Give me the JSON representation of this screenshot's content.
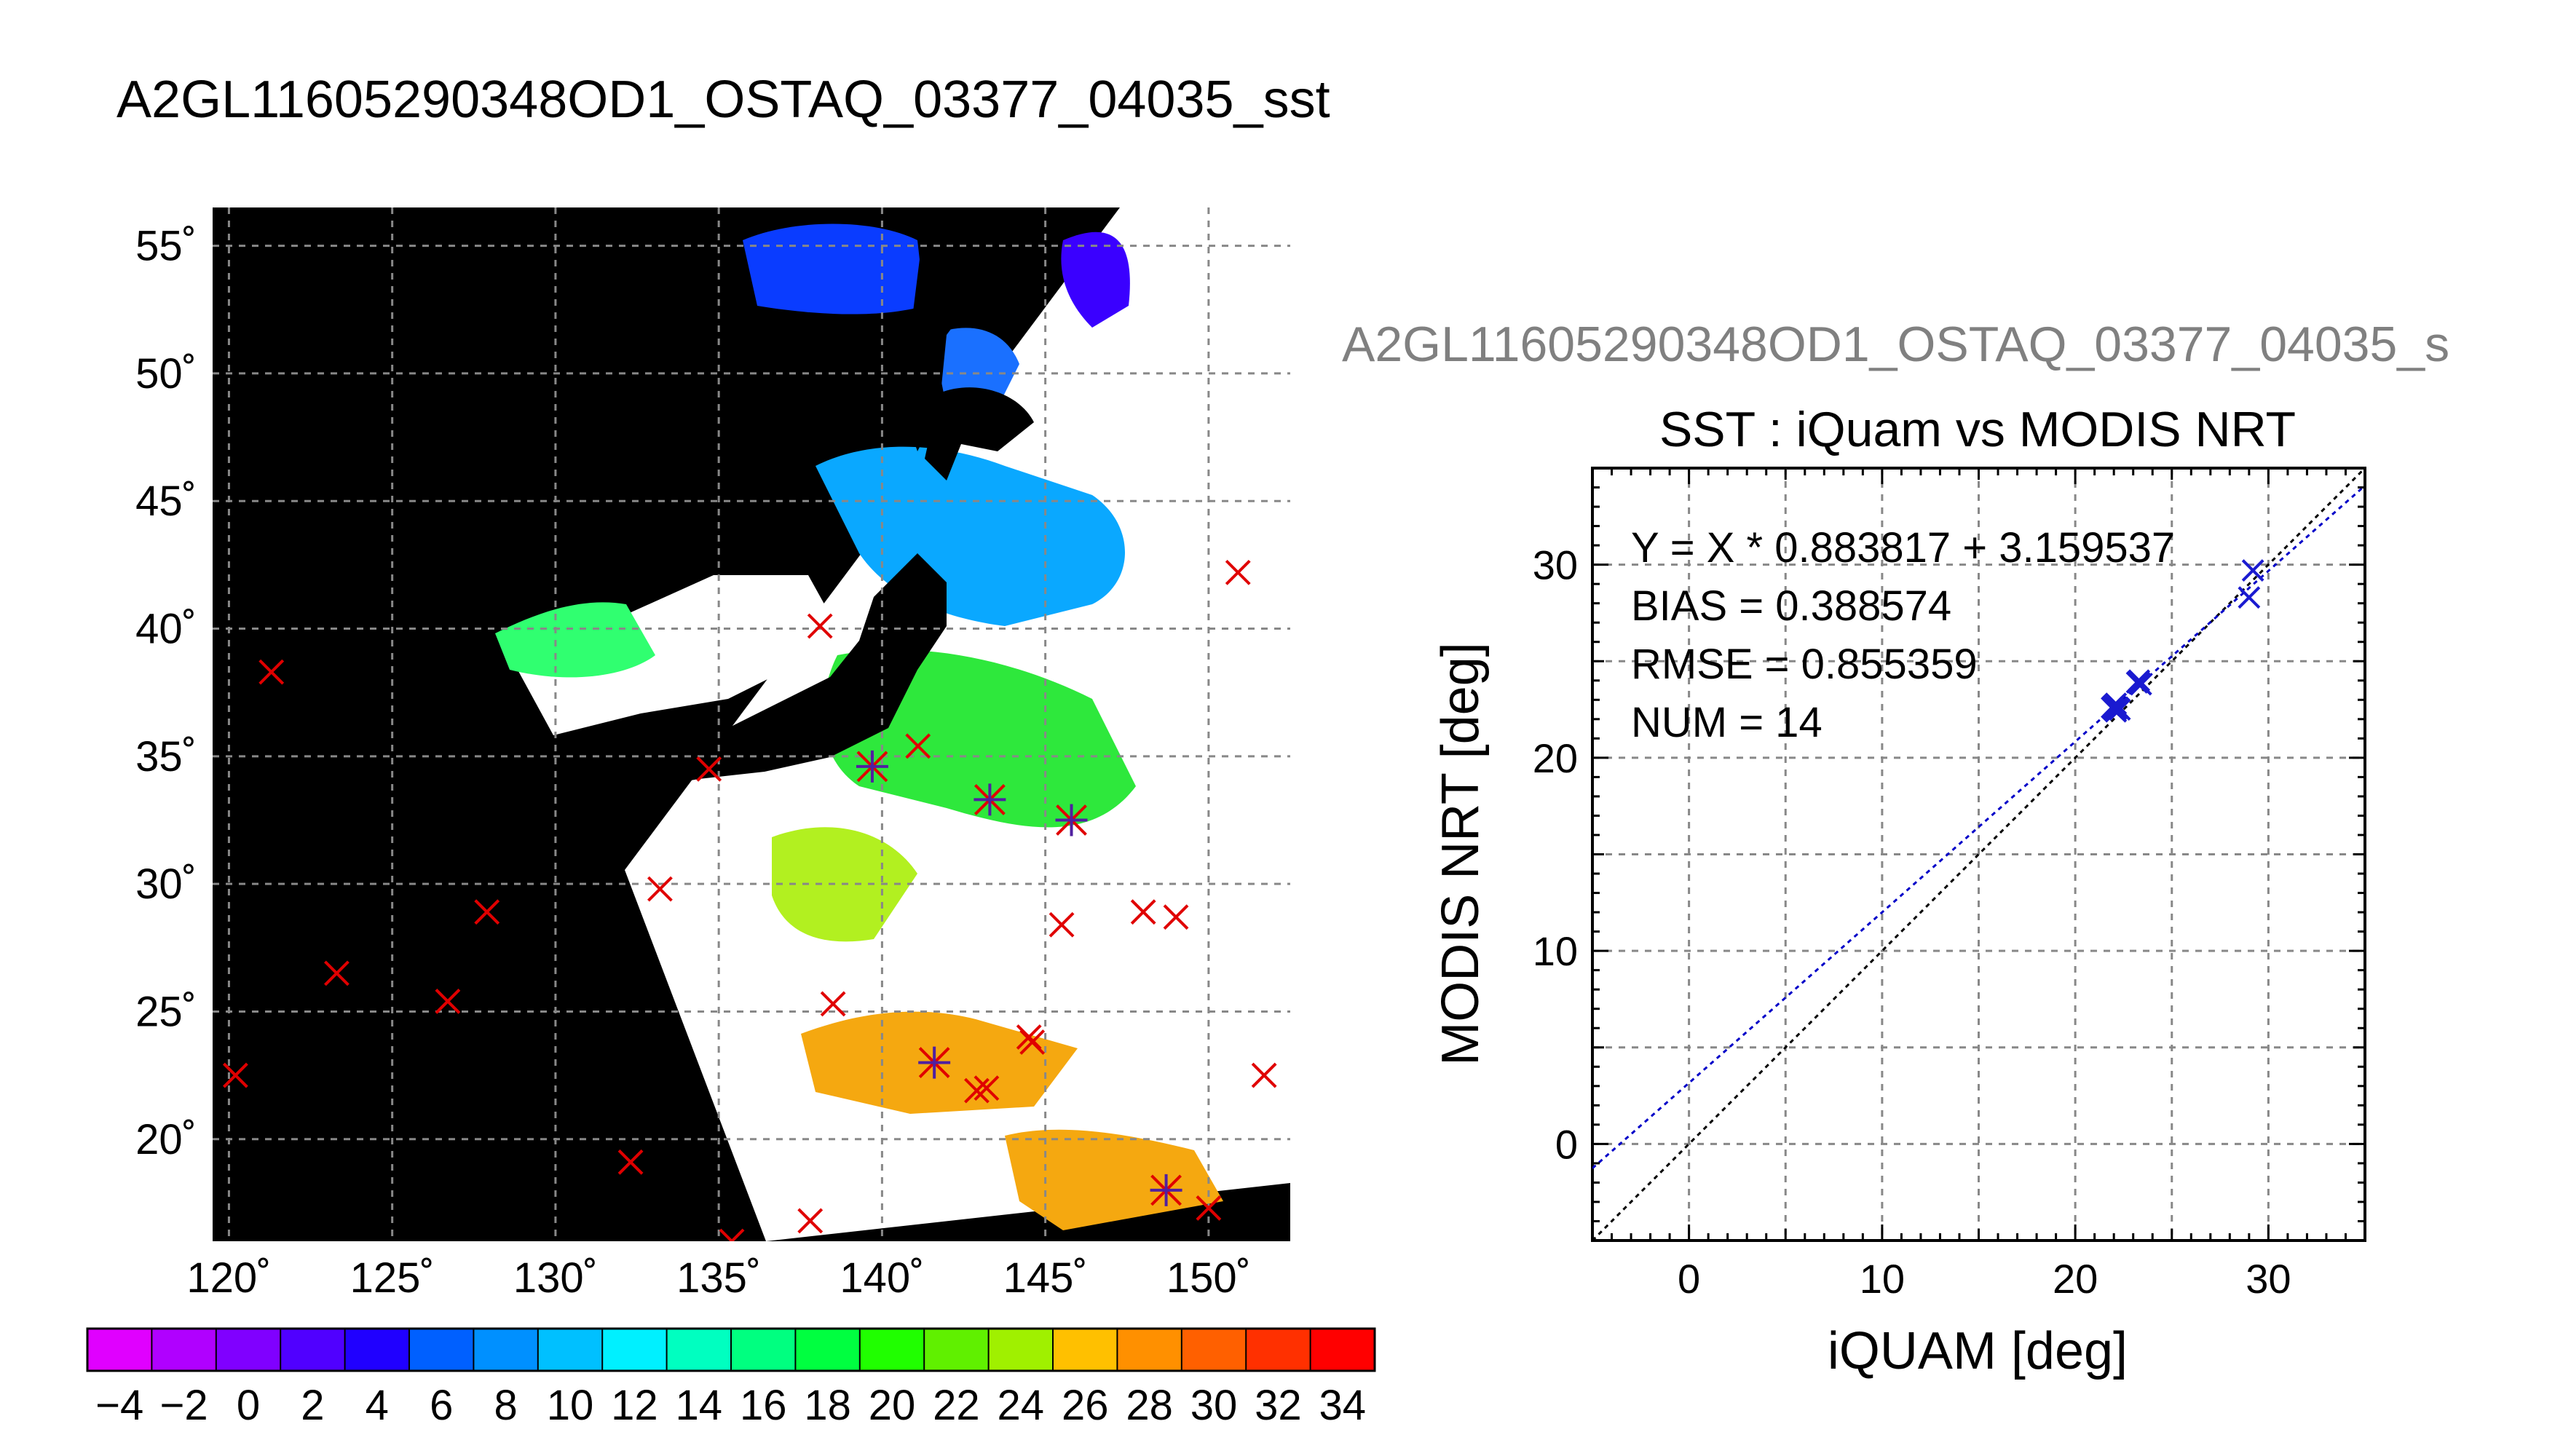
{
  "main_title": "A2GL11605290348OD1_OSTAQ_03377_04035_sst",
  "secondary_title": "A2GL11605290348OD1_OSTAQ_03377_04035_s",
  "chart_data": [
    {
      "type": "map",
      "lon_ticks": [
        "120˚",
        "125˚",
        "130˚",
        "135˚",
        "140˚",
        "145˚",
        "150˚"
      ],
      "lat_ticks": [
        "55˚",
        "50˚",
        "45˚",
        "40˚",
        "35˚",
        "30˚",
        "25˚",
        "20˚"
      ],
      "lon_range": [
        119.5,
        152.5
      ],
      "lat_range": [
        16,
        56.5
      ],
      "grid": true,
      "colorbar": {
        "min": -5,
        "max": 35,
        "ticks": [
          "−4",
          "−2",
          "0",
          "2",
          "4",
          "6",
          "8",
          "10",
          "12",
          "14",
          "16",
          "18",
          "20",
          "22",
          "24",
          "26",
          "28",
          "30",
          "32",
          "34"
        ]
      },
      "buoy_markers_red_x": [
        [
          120.2,
          22.5
        ],
        [
          121.3,
          38.3
        ],
        [
          123.3,
          26.5
        ],
        [
          126.7,
          25.4
        ],
        [
          127.9,
          28.9
        ],
        [
          132.3,
          19.1
        ],
        [
          133.2,
          29.8
        ],
        [
          134.7,
          34.5
        ],
        [
          135.4,
          16.0
        ],
        [
          137.8,
          16.8
        ],
        [
          138.1,
          40.1
        ],
        [
          138.5,
          25.3
        ],
        [
          141.1,
          35.4
        ],
        [
          142.9,
          21.9
        ],
        [
          143.2,
          22.0
        ],
        [
          144.5,
          24.0
        ],
        [
          144.6,
          23.8
        ],
        [
          145.5,
          28.4
        ],
        [
          148.0,
          28.9
        ],
        [
          149.0,
          28.7
        ],
        [
          150.0,
          17.3
        ],
        [
          150.9,
          42.2
        ],
        [
          151.7,
          22.5
        ]
      ],
      "matched_markers": [
        [
          139.7,
          34.6
        ],
        [
          141.6,
          23.0
        ],
        [
          143.3,
          33.3
        ],
        [
          145.8,
          32.5
        ],
        [
          148.7,
          18.0
        ]
      ]
    },
    {
      "type": "scatter",
      "title": "SST : iQuam vs MODIS NRT",
      "xlabel": "iQUAM [deg]",
      "ylabel": "MODIS NRT [deg]",
      "xlim": [
        -5,
        35
      ],
      "ylim": [
        -5,
        35
      ],
      "x_ticks": [
        "0",
        "10",
        "20",
        "30"
      ],
      "y_ticks": [
        "0",
        "10",
        "20",
        "30"
      ],
      "grid": true,
      "stats": [
        "Y = X * 0.883817 + 3.159537",
        "BIAS = 0.388574",
        "RMSE = 0.855359",
        "NUM = 14"
      ],
      "fit": {
        "slope": 0.883817,
        "intercept": 3.159537
      },
      "points": [
        [
          21.9,
          22.6
        ],
        [
          22.0,
          22.7
        ],
        [
          22.1,
          22.4
        ],
        [
          22.1,
          22.8
        ],
        [
          22.3,
          22.5
        ],
        [
          23.2,
          23.9
        ],
        [
          23.3,
          24.0
        ],
        [
          23.4,
          23.8
        ],
        [
          29.0,
          28.3
        ],
        [
          29.2,
          29.7
        ],
        [
          22.0,
          22.5
        ],
        [
          22.2,
          22.6
        ],
        [
          23.3,
          23.9
        ],
        [
          22.1,
          22.5
        ]
      ],
      "colors": {
        "points": "#1a1ad0",
        "fit_line": "#0000c8",
        "one_to_one": "#000000"
      }
    }
  ]
}
